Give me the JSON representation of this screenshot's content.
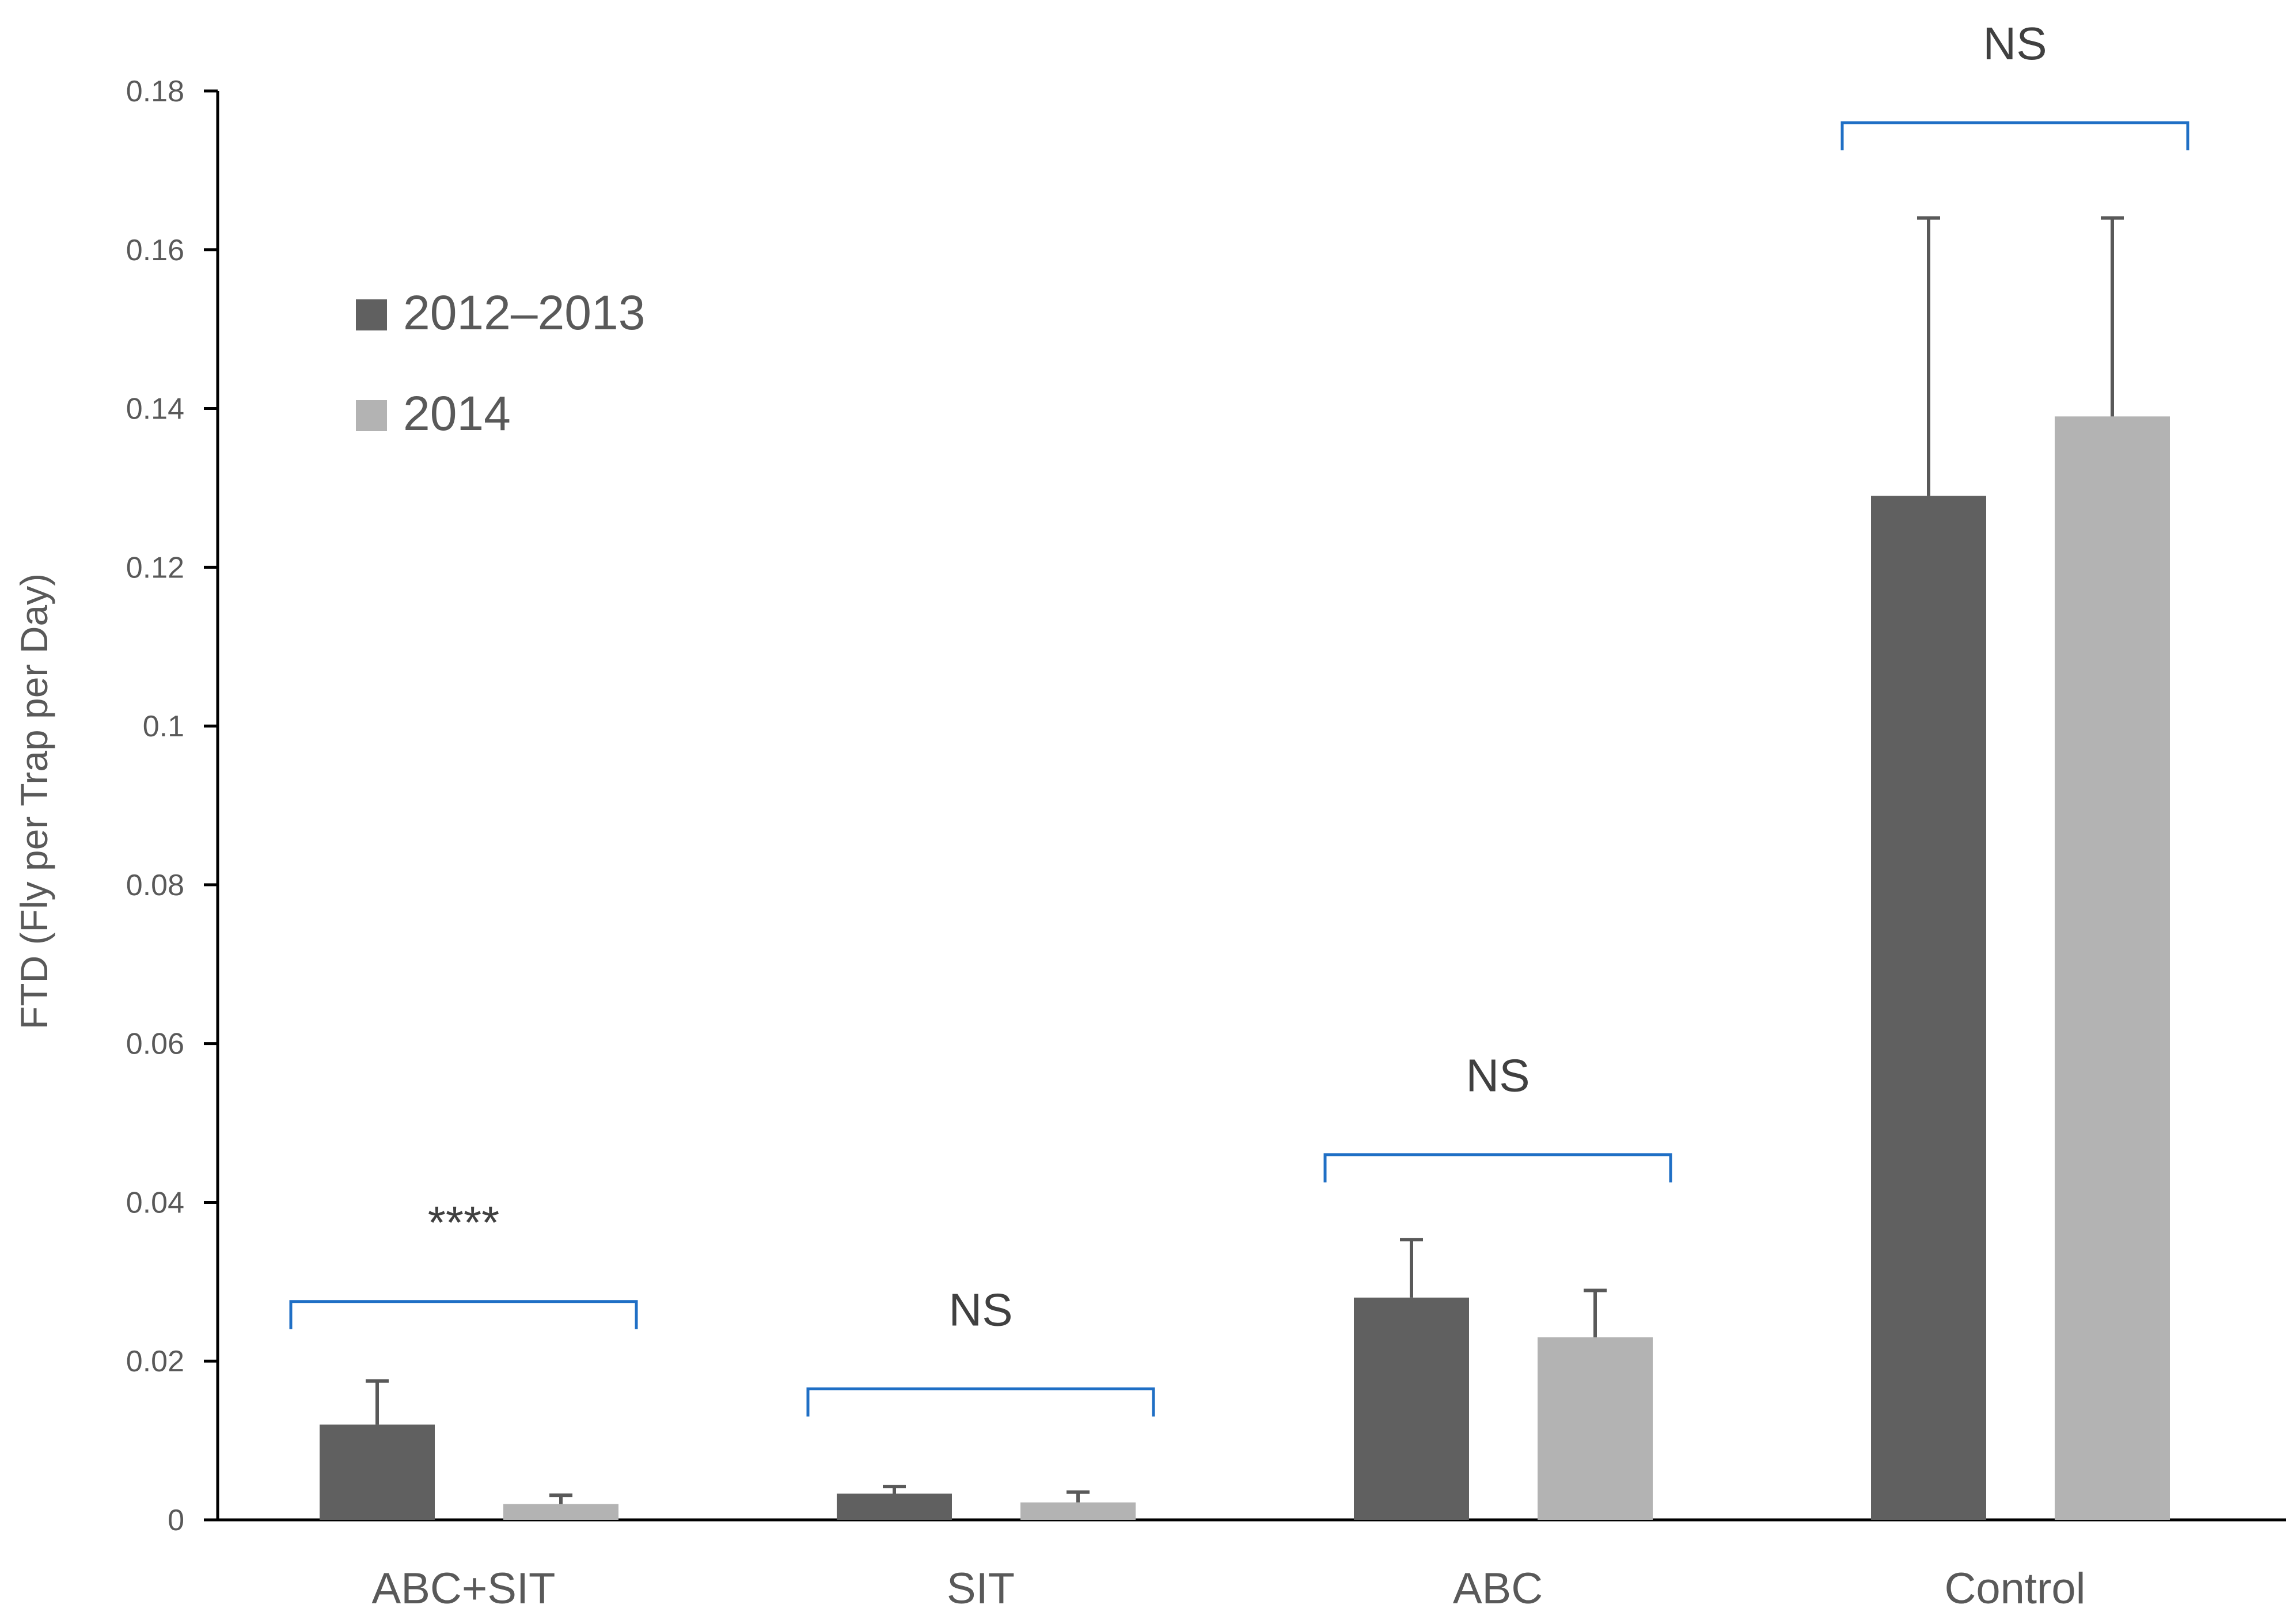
{
  "chart_data": {
    "type": "bar",
    "categories": [
      "ABC+SIT",
      "SIT",
      "ABC",
      "Control"
    ],
    "series": [
      {
        "name": "2012–2013",
        "values": [
          0.012,
          0.0033,
          0.028,
          0.129
        ],
        "errors": [
          0.0055,
          0.0009,
          0.0073,
          0.035
        ],
        "color": "#606060"
      },
      {
        "name": "2014",
        "values": [
          0.002,
          0.0022,
          0.023,
          0.139
        ],
        "errors": [
          0.0011,
          0.0013,
          0.0059,
          0.025
        ],
        "color": "#b3b3b3"
      }
    ],
    "ylabel": "FTD (Fly per Trap per Day)",
    "xlabel": "",
    "ylim": [
      0,
      0.18
    ],
    "yticks": [
      0,
      0.02,
      0.04,
      0.06,
      0.08,
      0.1,
      0.12,
      0.14,
      0.16,
      0.18
    ],
    "ytick_labels": [
      "0",
      "0.02",
      "0.04",
      "0.06",
      "0.08",
      "0.1",
      "0.12",
      "0.14",
      "0.16",
      "0.18"
    ],
    "significance": [
      {
        "label": "****",
        "bracket_y": 0.0275
      },
      {
        "label": "NS",
        "bracket_y": 0.0165
      },
      {
        "label": "NS",
        "bracket_y": 0.046
      },
      {
        "label": "NS",
        "bracket_y": 0.176
      }
    ],
    "bracket_color": "#1f6fc5",
    "grid": false,
    "legend": "top-left"
  }
}
